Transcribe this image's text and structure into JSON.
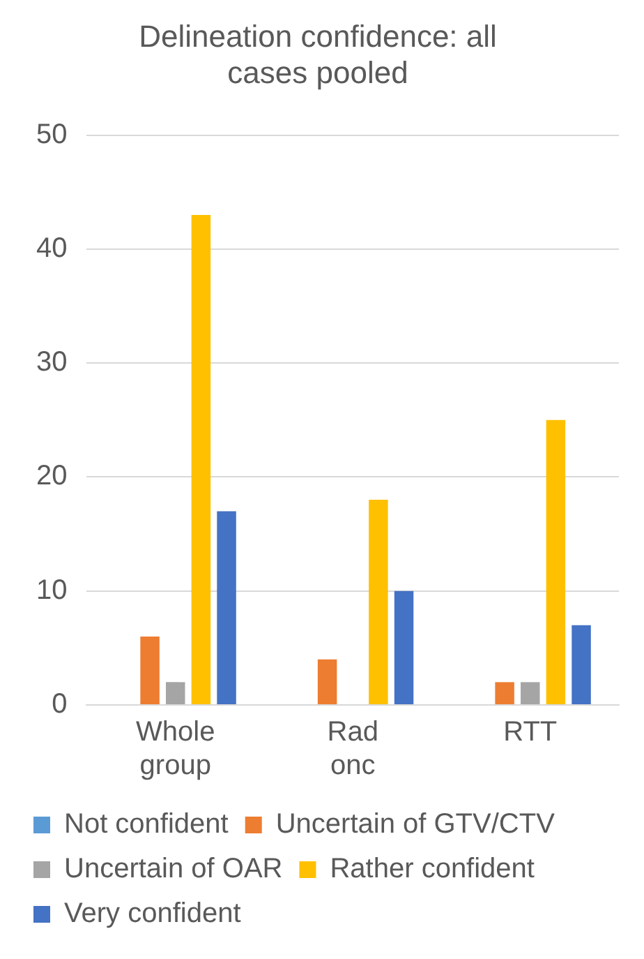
{
  "chart_data": {
    "type": "bar",
    "title": "Delineation confidence: all cases pooled",
    "categories": [
      "Whole group",
      "Rad onc",
      "RTT"
    ],
    "series": [
      {
        "name": "Not confident",
        "color": "#5b9bd5",
        "values": [
          0,
          0,
          0
        ]
      },
      {
        "name": "Uncertain of GTV/CTV",
        "color": "#ed7d31",
        "values": [
          6,
          4,
          2
        ]
      },
      {
        "name": "Uncertain of OAR",
        "color": "#a5a5a5",
        "values": [
          2,
          0,
          2
        ]
      },
      {
        "name": "Rather confident",
        "color": "#ffc000",
        "values": [
          43,
          18,
          25
        ]
      },
      {
        "name": "Very confident",
        "color": "#4472c4",
        "values": [
          17,
          10,
          7
        ]
      }
    ],
    "ylim": [
      0,
      50
    ],
    "yticks": [
      0,
      10,
      20,
      30,
      40,
      50
    ],
    "grid": "y",
    "legend": "bottom"
  }
}
